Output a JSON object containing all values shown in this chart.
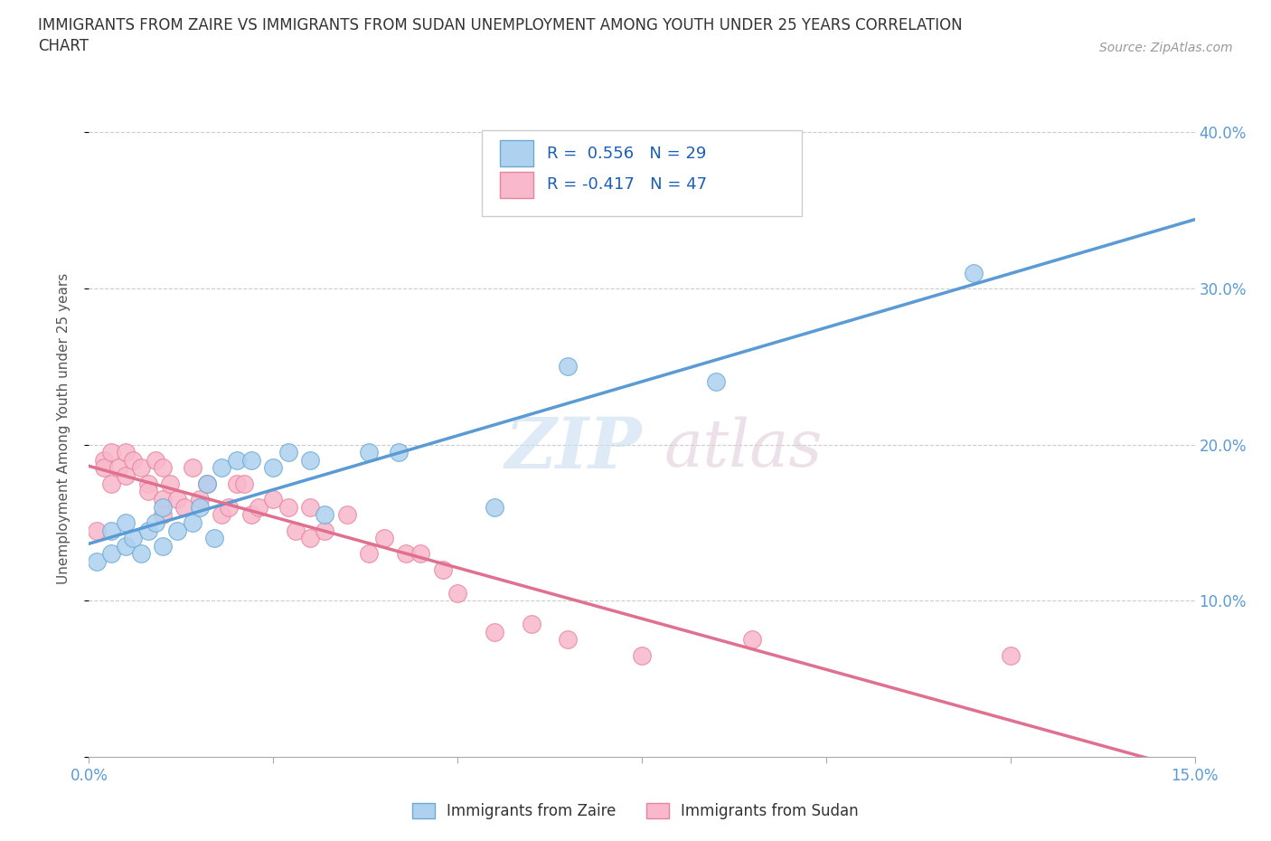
{
  "title": "IMMIGRANTS FROM ZAIRE VS IMMIGRANTS FROM SUDAN UNEMPLOYMENT AMONG YOUTH UNDER 25 YEARS CORRELATION\nCHART",
  "source": "Source: ZipAtlas.com",
  "ylabel": "Unemployment Among Youth under 25 years",
  "xlim": [
    0.0,
    0.15
  ],
  "ylim": [
    0.0,
    0.42
  ],
  "x_ticks": [
    0.0,
    0.025,
    0.05,
    0.075,
    0.1,
    0.125,
    0.15
  ],
  "x_tick_labels": [
    "0.0%",
    "",
    "",
    "",
    "",
    "",
    "15.0%"
  ],
  "y_ticks": [
    0.0,
    0.1,
    0.2,
    0.3,
    0.4
  ],
  "y_tick_labels": [
    "",
    "10.0%",
    "20.0%",
    "30.0%",
    "40.0%"
  ],
  "zaire_color": "#aed1f0",
  "sudan_color": "#f9b8cb",
  "zaire_edge_color": "#6aaad4",
  "sudan_edge_color": "#e8849e",
  "zaire_line_color": "#5b9bd5",
  "sudan_line_color": "#e07090",
  "dash_line_color": "#b8cfe8",
  "R_zaire": 0.556,
  "N_zaire": 29,
  "R_sudan": -0.417,
  "N_sudan": 47,
  "zaire_x": [
    0.001,
    0.003,
    0.003,
    0.005,
    0.005,
    0.006,
    0.007,
    0.008,
    0.009,
    0.01,
    0.01,
    0.012,
    0.014,
    0.015,
    0.016,
    0.017,
    0.018,
    0.02,
    0.022,
    0.025,
    0.027,
    0.03,
    0.032,
    0.038,
    0.042,
    0.055,
    0.065,
    0.085,
    0.12
  ],
  "zaire_y": [
    0.125,
    0.13,
    0.145,
    0.135,
    0.15,
    0.14,
    0.13,
    0.145,
    0.15,
    0.135,
    0.16,
    0.145,
    0.15,
    0.16,
    0.175,
    0.14,
    0.185,
    0.19,
    0.19,
    0.185,
    0.195,
    0.19,
    0.155,
    0.195,
    0.195,
    0.16,
    0.25,
    0.24,
    0.31
  ],
  "sudan_x": [
    0.001,
    0.002,
    0.002,
    0.003,
    0.003,
    0.004,
    0.005,
    0.005,
    0.006,
    0.007,
    0.008,
    0.008,
    0.009,
    0.01,
    0.01,
    0.01,
    0.011,
    0.012,
    0.013,
    0.014,
    0.015,
    0.016,
    0.018,
    0.019,
    0.02,
    0.021,
    0.022,
    0.023,
    0.025,
    0.027,
    0.028,
    0.03,
    0.03,
    0.032,
    0.035,
    0.038,
    0.04,
    0.043,
    0.045,
    0.048,
    0.05,
    0.055,
    0.06,
    0.065,
    0.075,
    0.09,
    0.125
  ],
  "sudan_y": [
    0.145,
    0.19,
    0.185,
    0.175,
    0.195,
    0.185,
    0.18,
    0.195,
    0.19,
    0.185,
    0.175,
    0.17,
    0.19,
    0.185,
    0.165,
    0.155,
    0.175,
    0.165,
    0.16,
    0.185,
    0.165,
    0.175,
    0.155,
    0.16,
    0.175,
    0.175,
    0.155,
    0.16,
    0.165,
    0.16,
    0.145,
    0.16,
    0.14,
    0.145,
    0.155,
    0.13,
    0.14,
    0.13,
    0.13,
    0.12,
    0.105,
    0.08,
    0.085,
    0.075,
    0.065,
    0.075,
    0.065
  ],
  "background_color": "#ffffff",
  "grid_color": "#cccccc",
  "tick_color": "#5b9bd5",
  "ylabel_color": "#555555",
  "legend_text_color": "#1a5fb4"
}
